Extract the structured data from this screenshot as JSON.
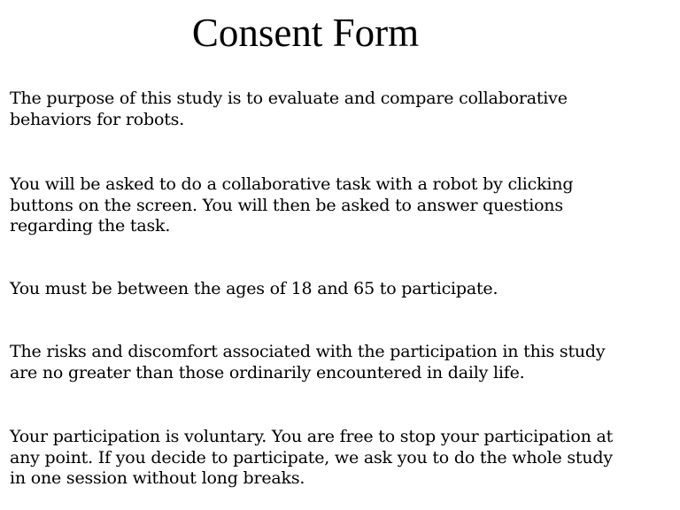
{
  "title": "Consent Form",
  "paragraphs": [
    {
      "lines": [
        "The purpose of this study is to evaluate and compare collaborative",
        "behaviors for robots."
      ]
    },
    {
      "lines": [
        "You will be asked to do a collaborative task with a robot by clicking",
        "buttons on the screen. You will  then be asked to answer questions",
        "regarding the task."
      ]
    },
    {
      "lines": [
        "You must be between the ages of 18 and 65 to participate."
      ]
    },
    {
      "lines": [
        "The risks and discomfort associated with the participation in this study",
        "are no greater than those ordinarily encountered in daily life."
      ]
    },
    {
      "lines": [
        "Your participation is voluntary. You are free to stop your participation at",
        "any point.   If you decide to participate, we ask you to do the whole study",
        "in one session without long breaks."
      ]
    }
  ]
}
